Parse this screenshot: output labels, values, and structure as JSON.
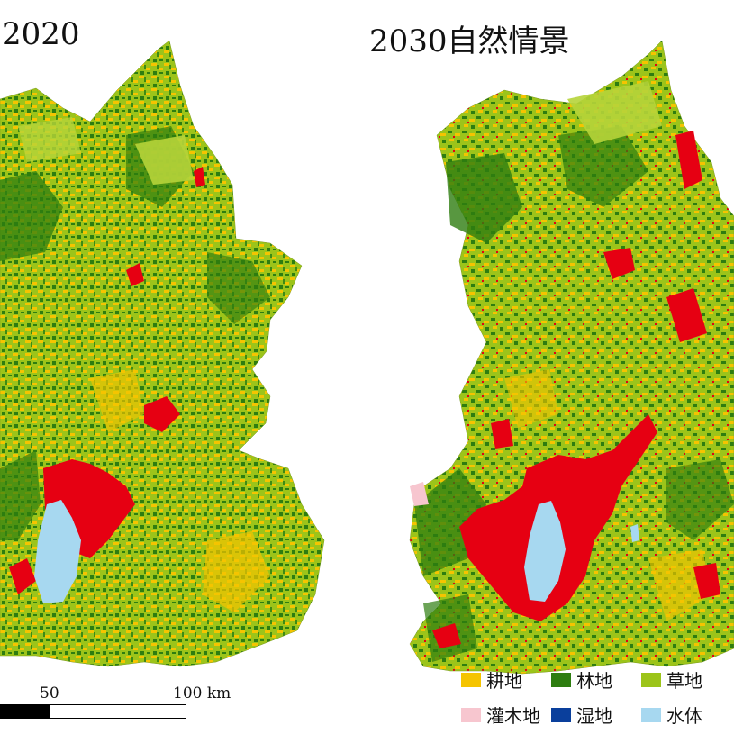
{
  "titles": {
    "left": "2020",
    "right": "2030自然情景"
  },
  "scale": {
    "label_50": "50",
    "label_100": "100 km"
  },
  "legend": {
    "items": [
      {
        "label": "耕地",
        "color": "#f5c400"
      },
      {
        "label": "林地",
        "color": "#2e7d10"
      },
      {
        "label": "草地",
        "color": "#9cc41a"
      },
      {
        "label": "灌木地",
        "color": "#f7c6cf"
      },
      {
        "label": "湿地",
        "color": "#0a3f9c"
      },
      {
        "label": "水体",
        "color": "#a7d8f0"
      }
    ],
    "construction_color": "#e60012"
  }
}
